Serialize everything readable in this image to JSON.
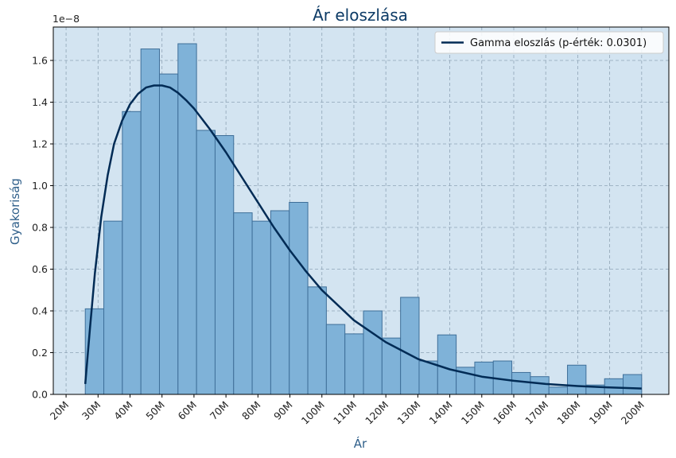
{
  "chart_data": {
    "type": "bar",
    "title": "Ár eloszlása",
    "xlabel": "Ár",
    "ylabel": "Gyakoriság",
    "y_offset_label": "1e−8",
    "xlim": [
      16000000,
      208500000
    ],
    "ylim": [
      0,
      1.76
    ],
    "x_ticks": [
      20000000,
      30000000,
      40000000,
      50000000,
      60000000,
      70000000,
      80000000,
      90000000,
      100000000,
      110000000,
      120000000,
      130000000,
      140000000,
      150000000,
      160000000,
      170000000,
      180000000,
      190000000,
      200000000
    ],
    "x_tick_labels": [
      "20M",
      "30M",
      "40M",
      "50M",
      "60M",
      "70M",
      "80M",
      "90M",
      "100M",
      "110M",
      "120M",
      "130M",
      "140M",
      "150M",
      "160M",
      "170M",
      "180M",
      "190M",
      "200M"
    ],
    "y_ticks": [
      0,
      0.2,
      0.4,
      0.6,
      0.8,
      1.0,
      1.2,
      1.4,
      1.6
    ],
    "y_tick_labels": [
      "0.0",
      "0.2",
      "0.4",
      "0.6",
      "0.8",
      "1.0",
      "1.2",
      "1.4",
      "1.6"
    ],
    "grid": true,
    "legend_position": "top-right",
    "histogram": {
      "bin_edges": [
        26000000,
        31800000,
        37600000,
        43400000,
        49200000,
        55000000,
        60800000,
        66600000,
        72400000,
        78200000,
        84000000,
        89800000,
        95600000,
        101400000,
        107200000,
        113000000,
        118800000,
        124600000,
        130400000,
        136200000,
        142000000,
        147800000,
        153600000,
        159400000,
        165200000,
        171000000,
        176800000,
        182600000,
        188400000,
        194200000,
        200000000
      ],
      "values": [
        0.41,
        0.83,
        1.355,
        1.655,
        1.535,
        1.68,
        1.265,
        1.24,
        0.87,
        0.83,
        0.88,
        0.92,
        0.515,
        0.335,
        0.29,
        0.4,
        0.27,
        0.465,
        0.16,
        0.285,
        0.13,
        0.155,
        0.16,
        0.105,
        0.085,
        0.035,
        0.14,
        0.045,
        0.075,
        0.095
      ],
      "color": "#7fb2d8",
      "edge_color": "#3f6f99"
    },
    "series": [
      {
        "name": "Gamma eloszlás (p-érték: 0.0301)",
        "type": "line",
        "color": "#002b55",
        "x": [
          26000000,
          27500000,
          29000000,
          31000000,
          33000000,
          35000000,
          37500000,
          40000000,
          42500000,
          45000000,
          47500000,
          50000000,
          52500000,
          55000000,
          57500000,
          60000000,
          65000000,
          70000000,
          75000000,
          80000000,
          85000000,
          90000000,
          95000000,
          100000000,
          110000000,
          120000000,
          130000000,
          140000000,
          150000000,
          160000000,
          170000000,
          180000000,
          190000000,
          200000000
        ],
        "y": [
          0.05,
          0.32,
          0.58,
          0.85,
          1.05,
          1.2,
          1.31,
          1.39,
          1.44,
          1.47,
          1.48,
          1.48,
          1.47,
          1.445,
          1.41,
          1.37,
          1.27,
          1.16,
          1.04,
          0.92,
          0.8,
          0.69,
          0.59,
          0.5,
          0.355,
          0.25,
          0.17,
          0.12,
          0.085,
          0.065,
          0.05,
          0.04,
          0.033,
          0.028
        ]
      }
    ],
    "colors": {
      "plot_background": "#d3e4f1",
      "grid": "#8fa4b6",
      "title": "#0d3b66",
      "axis_label": "#2f5f8a"
    }
  }
}
